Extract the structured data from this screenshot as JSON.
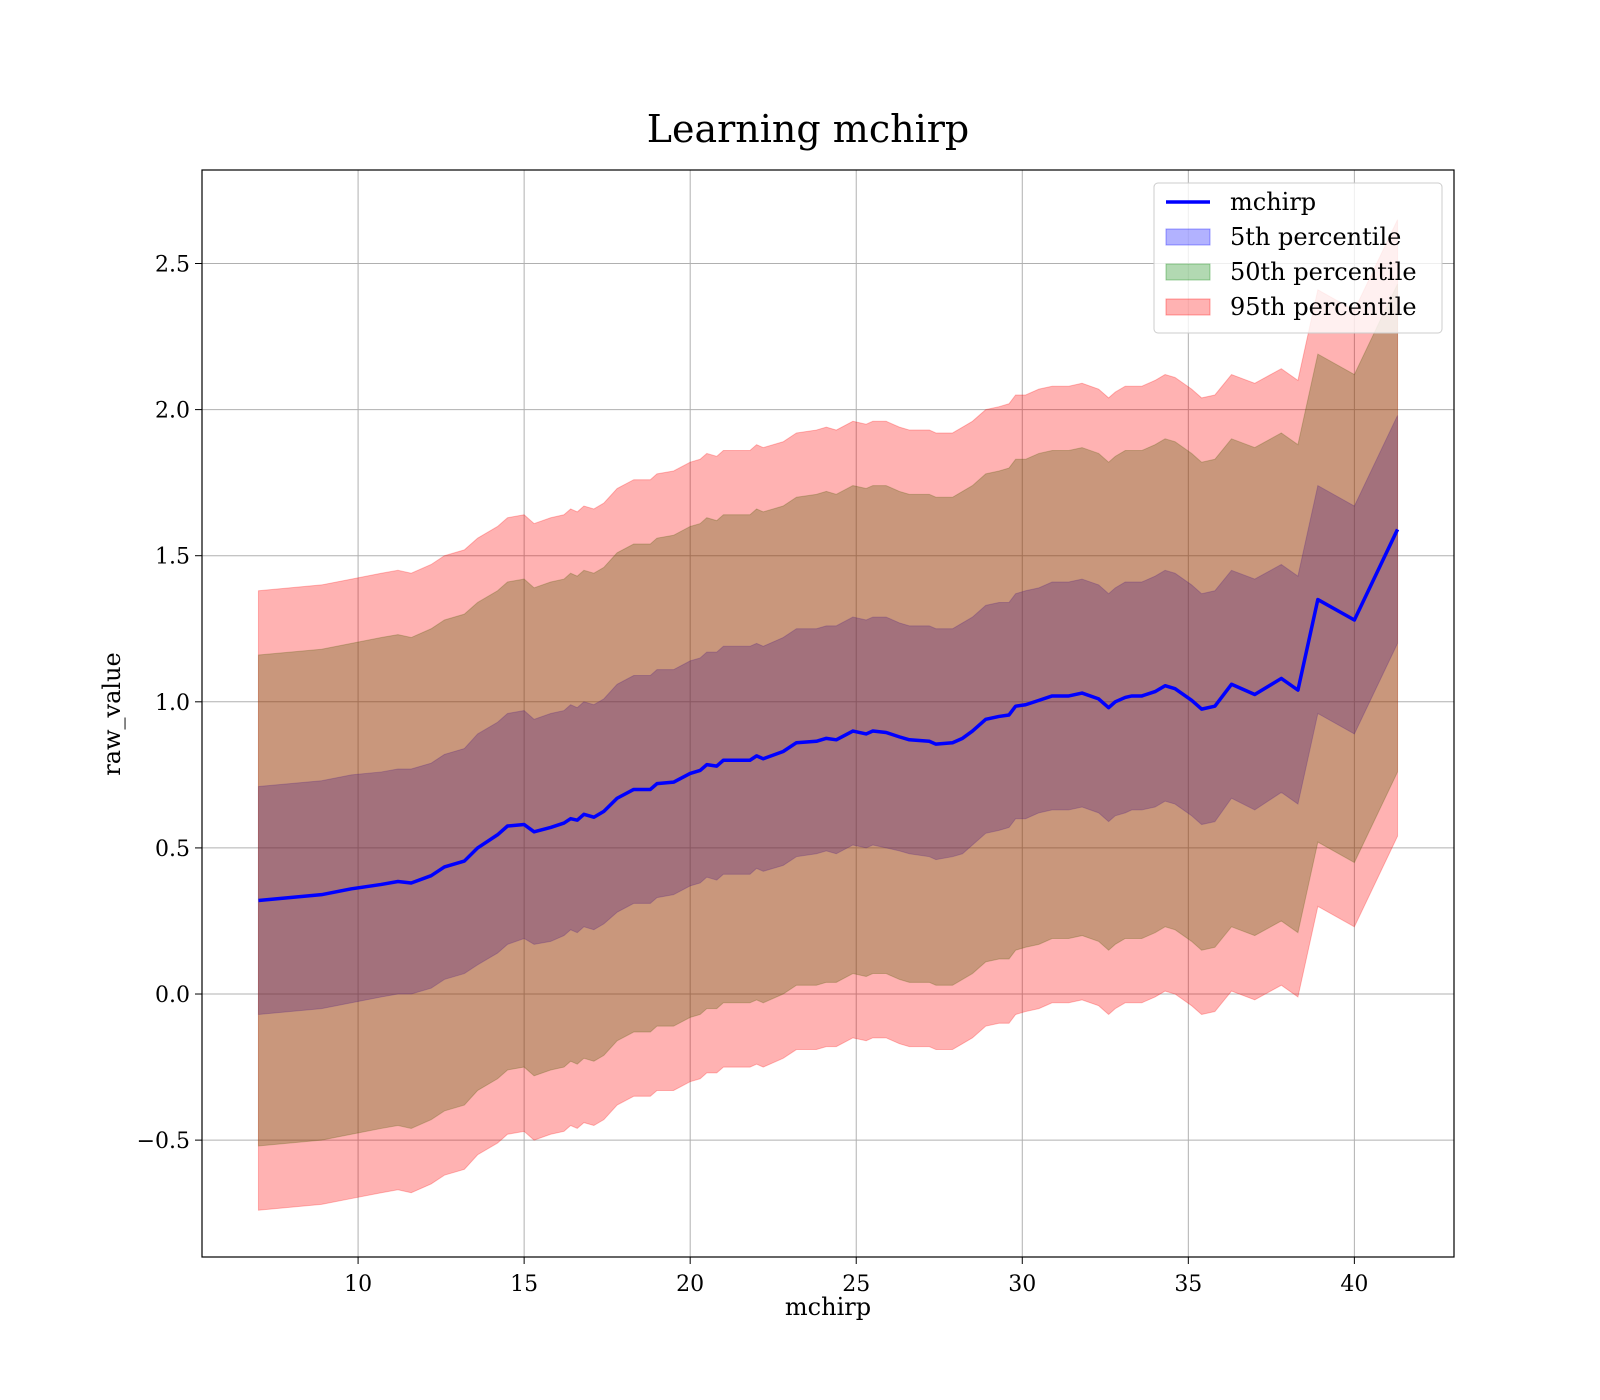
{
  "chart_data": {
    "type": "area",
    "title": "Learning mchirp",
    "xlabel": "mchirp",
    "ylabel": "raw_value",
    "xlim": [
      5.3,
      43.0
    ],
    "ylim": [
      -0.9,
      2.82
    ],
    "xticks": [
      10,
      15,
      20,
      25,
      30,
      35,
      40
    ],
    "xtick_labels": [
      "10",
      "15",
      "20",
      "25",
      "30",
      "35",
      "40"
    ],
    "yticks": [
      -0.5,
      0.0,
      0.5,
      1.0,
      1.5,
      2.0,
      2.5
    ],
    "ytick_labels": [
      "−0.5",
      "0.0",
      "0.5",
      "1.0",
      "1.5",
      "2.0",
      "2.5"
    ],
    "grid": true,
    "legend_position": "top-right",
    "legend": [
      {
        "label": "mchirp",
        "kind": "line",
        "color": "#0000ff"
      },
      {
        "label": "5th percentile",
        "kind": "patch",
        "color": "#0000ff"
      },
      {
        "label": "50th percentile",
        "kind": "patch",
        "color": "#008000"
      },
      {
        "label": "95th percentile",
        "kind": "patch",
        "color": "#ff0000"
      }
    ],
    "x": [
      7.0,
      8.9,
      9.8,
      10.7,
      11.2,
      11.6,
      12.2,
      12.6,
      13.2,
      13.6,
      14.2,
      14.5,
      15.0,
      15.3,
      15.8,
      16.2,
      16.4,
      16.6,
      16.8,
      17.1,
      17.4,
      17.8,
      18.3,
      18.8,
      19.0,
      19.5,
      20.0,
      20.3,
      20.5,
      20.8,
      21.0,
      21.3,
      21.8,
      22.0,
      22.2,
      22.8,
      23.2,
      23.8,
      24.1,
      24.4,
      24.9,
      25.3,
      25.5,
      25.9,
      26.3,
      26.6,
      27.2,
      27.4,
      27.9,
      28.2,
      28.5,
      28.9,
      29.3,
      29.6,
      29.8,
      30.1,
      30.5,
      30.9,
      31.4,
      31.8,
      32.3,
      32.6,
      32.8,
      33.1,
      33.3,
      33.6,
      34.0,
      34.3,
      34.6,
      35.1,
      35.4,
      35.8,
      36.3,
      37.0,
      37.8,
      38.3,
      38.9,
      40.0,
      41.3
    ],
    "series": [
      {
        "name": "mchirp",
        "kind": "line",
        "color": "#0000ff",
        "y": [
          0.32,
          0.34,
          0.36,
          0.375,
          0.385,
          0.38,
          0.405,
          0.435,
          0.455,
          0.5,
          0.545,
          0.575,
          0.58,
          0.555,
          0.57,
          0.585,
          0.6,
          0.595,
          0.615,
          0.605,
          0.625,
          0.67,
          0.7,
          0.7,
          0.72,
          0.725,
          0.755,
          0.765,
          0.785,
          0.78,
          0.8,
          0.8,
          0.8,
          0.815,
          0.805,
          0.83,
          0.86,
          0.865,
          0.875,
          0.87,
          0.9,
          0.89,
          0.9,
          0.895,
          0.88,
          0.87,
          0.865,
          0.855,
          0.86,
          0.875,
          0.9,
          0.94,
          0.95,
          0.955,
          0.985,
          0.99,
          1.005,
          1.02,
          1.02,
          1.03,
          1.01,
          0.98,
          1.0,
          1.015,
          1.02,
          1.02,
          1.035,
          1.055,
          1.045,
          1.005,
          0.975,
          0.985,
          1.06,
          1.025,
          1.08,
          1.04,
          1.35,
          1.28,
          1.59
        ]
      },
      {
        "name": "5th percentile",
        "kind": "band",
        "color": "#0000ff",
        "lower": [
          -0.07,
          -0.05,
          -0.03,
          -0.01,
          0.0,
          0.0,
          0.02,
          0.05,
          0.07,
          0.1,
          0.14,
          0.17,
          0.19,
          0.17,
          0.18,
          0.2,
          0.22,
          0.21,
          0.23,
          0.22,
          0.24,
          0.28,
          0.31,
          0.31,
          0.33,
          0.34,
          0.37,
          0.38,
          0.4,
          0.39,
          0.41,
          0.41,
          0.41,
          0.43,
          0.42,
          0.44,
          0.47,
          0.48,
          0.49,
          0.48,
          0.51,
          0.5,
          0.51,
          0.5,
          0.49,
          0.48,
          0.47,
          0.46,
          0.47,
          0.48,
          0.51,
          0.55,
          0.56,
          0.57,
          0.6,
          0.6,
          0.62,
          0.63,
          0.63,
          0.64,
          0.62,
          0.59,
          0.61,
          0.62,
          0.63,
          0.63,
          0.64,
          0.66,
          0.65,
          0.61,
          0.58,
          0.59,
          0.67,
          0.63,
          0.69,
          0.65,
          0.96,
          0.89,
          1.2
        ],
        "upper": [
          0.71,
          0.73,
          0.75,
          0.76,
          0.77,
          0.77,
          0.79,
          0.82,
          0.84,
          0.89,
          0.93,
          0.96,
          0.97,
          0.94,
          0.96,
          0.97,
          0.99,
          0.98,
          1.0,
          0.99,
          1.01,
          1.06,
          1.09,
          1.09,
          1.11,
          1.11,
          1.14,
          1.15,
          1.17,
          1.17,
          1.19,
          1.19,
          1.19,
          1.2,
          1.19,
          1.22,
          1.25,
          1.25,
          1.26,
          1.26,
          1.29,
          1.28,
          1.29,
          1.29,
          1.27,
          1.26,
          1.26,
          1.25,
          1.25,
          1.27,
          1.29,
          1.33,
          1.34,
          1.34,
          1.37,
          1.38,
          1.39,
          1.41,
          1.41,
          1.42,
          1.4,
          1.37,
          1.39,
          1.41,
          1.41,
          1.41,
          1.43,
          1.45,
          1.44,
          1.4,
          1.37,
          1.38,
          1.45,
          1.42,
          1.47,
          1.43,
          1.74,
          1.67,
          1.98
        ]
      },
      {
        "name": "50th percentile",
        "kind": "band",
        "color": "#008000",
        "lower": [
          -0.52,
          -0.5,
          -0.48,
          -0.46,
          -0.45,
          -0.46,
          -0.43,
          -0.4,
          -0.38,
          -0.33,
          -0.29,
          -0.26,
          -0.25,
          -0.28,
          -0.26,
          -0.25,
          -0.23,
          -0.24,
          -0.22,
          -0.23,
          -0.21,
          -0.16,
          -0.13,
          -0.13,
          -0.11,
          -0.11,
          -0.08,
          -0.07,
          -0.05,
          -0.05,
          -0.03,
          -0.03,
          -0.03,
          -0.02,
          -0.03,
          0.0,
          0.03,
          0.03,
          0.04,
          0.04,
          0.07,
          0.06,
          0.07,
          0.07,
          0.05,
          0.04,
          0.04,
          0.03,
          0.03,
          0.05,
          0.07,
          0.11,
          0.12,
          0.12,
          0.15,
          0.16,
          0.17,
          0.19,
          0.19,
          0.2,
          0.18,
          0.15,
          0.17,
          0.19,
          0.19,
          0.19,
          0.21,
          0.23,
          0.22,
          0.18,
          0.15,
          0.16,
          0.23,
          0.2,
          0.25,
          0.21,
          0.52,
          0.45,
          0.76
        ],
        "upper": [
          1.16,
          1.18,
          1.2,
          1.22,
          1.23,
          1.22,
          1.25,
          1.28,
          1.3,
          1.34,
          1.38,
          1.41,
          1.42,
          1.39,
          1.41,
          1.42,
          1.44,
          1.43,
          1.45,
          1.44,
          1.46,
          1.51,
          1.54,
          1.54,
          1.56,
          1.57,
          1.6,
          1.61,
          1.63,
          1.62,
          1.64,
          1.64,
          1.64,
          1.66,
          1.65,
          1.67,
          1.7,
          1.71,
          1.72,
          1.71,
          1.74,
          1.73,
          1.74,
          1.74,
          1.72,
          1.71,
          1.71,
          1.7,
          1.7,
          1.72,
          1.74,
          1.78,
          1.79,
          1.8,
          1.83,
          1.83,
          1.85,
          1.86,
          1.86,
          1.87,
          1.85,
          1.82,
          1.84,
          1.86,
          1.86,
          1.86,
          1.88,
          1.9,
          1.89,
          1.85,
          1.82,
          1.83,
          1.9,
          1.87,
          1.92,
          1.88,
          2.19,
          2.12,
          2.43
        ]
      },
      {
        "name": "95th percentile",
        "kind": "band",
        "color": "#ff0000",
        "lower": [
          -0.74,
          -0.72,
          -0.7,
          -0.68,
          -0.67,
          -0.68,
          -0.65,
          -0.62,
          -0.6,
          -0.55,
          -0.51,
          -0.48,
          -0.47,
          -0.5,
          -0.48,
          -0.47,
          -0.45,
          -0.46,
          -0.44,
          -0.45,
          -0.43,
          -0.38,
          -0.35,
          -0.35,
          -0.33,
          -0.33,
          -0.3,
          -0.29,
          -0.27,
          -0.27,
          -0.25,
          -0.25,
          -0.25,
          -0.24,
          -0.25,
          -0.22,
          -0.19,
          -0.19,
          -0.18,
          -0.18,
          -0.15,
          -0.16,
          -0.15,
          -0.15,
          -0.17,
          -0.18,
          -0.18,
          -0.19,
          -0.19,
          -0.17,
          -0.15,
          -0.11,
          -0.1,
          -0.1,
          -0.07,
          -0.06,
          -0.05,
          -0.03,
          -0.03,
          -0.02,
          -0.04,
          -0.07,
          -0.05,
          -0.03,
          -0.03,
          -0.03,
          -0.01,
          0.01,
          0.0,
          -0.04,
          -0.07,
          -0.06,
          0.01,
          -0.02,
          0.03,
          -0.01,
          0.3,
          0.23,
          0.54
        ],
        "upper": [
          1.38,
          1.4,
          1.42,
          1.44,
          1.45,
          1.44,
          1.47,
          1.5,
          1.52,
          1.56,
          1.6,
          1.63,
          1.64,
          1.61,
          1.63,
          1.64,
          1.66,
          1.65,
          1.67,
          1.66,
          1.68,
          1.73,
          1.76,
          1.76,
          1.78,
          1.79,
          1.82,
          1.83,
          1.85,
          1.84,
          1.86,
          1.86,
          1.86,
          1.88,
          1.87,
          1.89,
          1.92,
          1.93,
          1.94,
          1.93,
          1.96,
          1.95,
          1.96,
          1.96,
          1.94,
          1.93,
          1.93,
          1.92,
          1.92,
          1.94,
          1.96,
          2.0,
          2.01,
          2.02,
          2.05,
          2.05,
          2.07,
          2.08,
          2.08,
          2.09,
          2.07,
          2.04,
          2.06,
          2.08,
          2.08,
          2.08,
          2.1,
          2.12,
          2.11,
          2.07,
          2.04,
          2.05,
          2.12,
          2.09,
          2.14,
          2.1,
          2.41,
          2.34,
          2.65
        ]
      }
    ]
  }
}
